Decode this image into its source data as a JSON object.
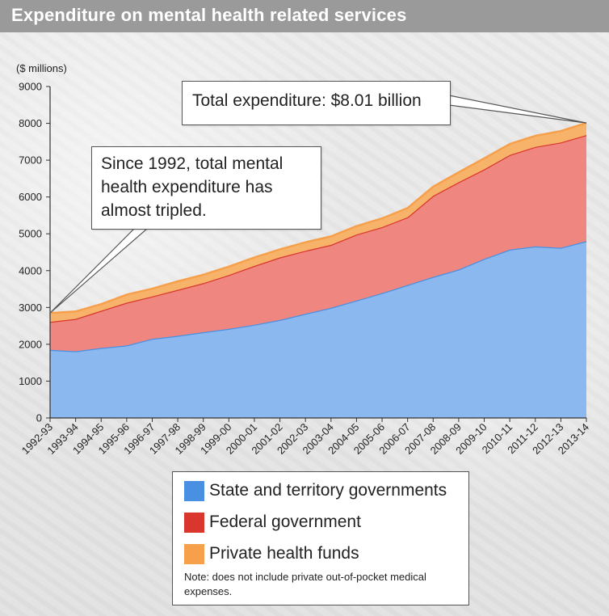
{
  "header": {
    "title": "Expenditure on mental health related services"
  },
  "colors": {
    "state": "#8ab8ef",
    "state_legend": "#4a90e2",
    "federal": "#ef8780",
    "federal_legend": "#d9372e",
    "private": "#f7b36a",
    "private_legend": "#f7a04c",
    "title_bar": "#9a9a9a"
  },
  "callouts": {
    "total": "Total expenditure: $8.01 billion",
    "since_lines": [
      "Since 1992, total mental",
      "health expenditure has",
      "almost tripled."
    ]
  },
  "legend": {
    "items": [
      {
        "key": "state",
        "label": "State and territory governments"
      },
      {
        "key": "federal",
        "label": "Federal government"
      },
      {
        "key": "private",
        "label": "Private health funds"
      }
    ],
    "note": "Note: does not include private out-of-pocket medical expenses."
  },
  "chart_data": {
    "type": "area",
    "stacked": true,
    "ylabel": "($ millions)",
    "ylim": [
      0,
      9000
    ],
    "yticks": [
      0,
      1000,
      2000,
      3000,
      4000,
      5000,
      6000,
      7000,
      8000,
      9000
    ],
    "categories": [
      "1992-93",
      "1993-94",
      "1994-95",
      "1995-96",
      "1996-97",
      "1997-98",
      "1998-99",
      "1999-00",
      "2000-01",
      "2001-02",
      "2002-03",
      "2003-04",
      "2004-05",
      "2005-06",
      "2006-07",
      "2007-08",
      "2008-09",
      "2009-10",
      "2010-11",
      "2011-12",
      "2012-13",
      "2013-14"
    ],
    "series": [
      {
        "name": "State and territory governments",
        "key": "state",
        "values": [
          1850,
          1810,
          1900,
          1970,
          2150,
          2230,
          2330,
          2420,
          2530,
          2660,
          2830,
          2990,
          3190,
          3390,
          3610,
          3830,
          4030,
          4320,
          4570,
          4660,
          4620,
          4800
        ]
      },
      {
        "name": "Federal government",
        "key": "federal",
        "values": [
          760,
          880,
          1010,
          1160,
          1150,
          1250,
          1330,
          1460,
          1600,
          1700,
          1710,
          1710,
          1790,
          1790,
          1840,
          2200,
          2370,
          2430,
          2570,
          2700,
          2860,
          2880
        ]
      },
      {
        "name": "Private health funds",
        "key": "private",
        "values": [
          240,
          200,
          180,
          220,
          210,
          230,
          230,
          230,
          230,
          220,
          230,
          230,
          230,
          240,
          250,
          250,
          270,
          300,
          300,
          300,
          310,
          330
        ]
      }
    ]
  }
}
